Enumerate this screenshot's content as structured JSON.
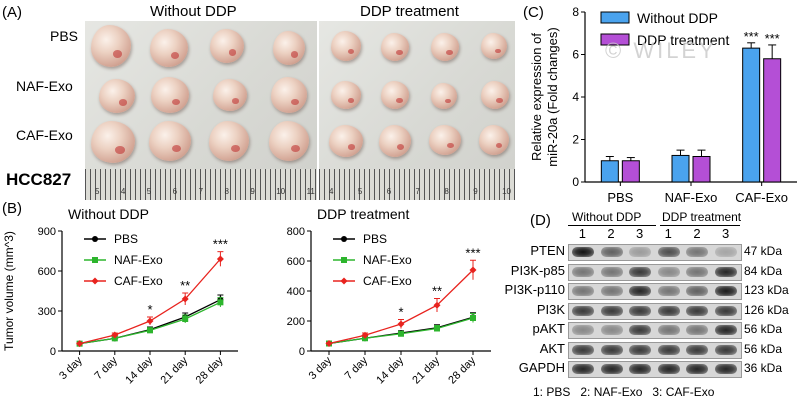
{
  "panelA": {
    "letter": "(A)",
    "left_title": "Without DDP",
    "right_title": "DDP treatment",
    "row_labels": [
      "PBS",
      "NAF-Exo",
      "CAF-Exo"
    ],
    "cell_line": "HCC827",
    "ruler_left": [
      "5",
      "4",
      "5",
      "6",
      "7",
      "8",
      "9",
      "10",
      "11"
    ],
    "ruler_right": [
      "4",
      "5",
      "6",
      "7",
      "8",
      "9",
      "10"
    ]
  },
  "panelB": {
    "letter": "(B)",
    "ylabel": "Tumor volume (mm^3)",
    "legend": [
      "PBS",
      "NAF-Exo",
      "CAF-Exo"
    ],
    "colors": [
      "#000000",
      "#2db52d",
      "#e8231e"
    ],
    "categories": [
      "3 day",
      "7 day",
      "14 day",
      "21 day",
      "28 day"
    ]
  },
  "panelC": {
    "letter": "(C)",
    "ylabel_line1": "Relative expression of",
    "ylabel_line2": "miR-20a (Fold changes)",
    "legend": [
      "Without DDP",
      "DDP treatment"
    ],
    "colors": [
      "#4aa3ee",
      "#b44fd6"
    ],
    "watermark": "© WILEY"
  },
  "panelD": {
    "letter": "(D)",
    "group1": "Without DDP",
    "group2": "DDP treatment",
    "lanes": [
      "1",
      "2",
      "3",
      "1",
      "2",
      "3"
    ],
    "proteins": [
      "PTEN",
      "PI3K-p85",
      "PI3K-p110",
      "PI3K",
      "pAKT",
      "AKT",
      "GAPDH"
    ],
    "sizes": [
      "47 kDa",
      "84 kDa",
      "123 kDa",
      "126 kDa",
      "56 kDa",
      "56 kDa",
      "36 kDa"
    ],
    "footnote": "1: PBS   2: NAF-Exo   3: CAF-Exo"
  },
  "chart_data": [
    {
      "type": "line",
      "title": "Without DDP",
      "ylabel": "Tumor volume (mm^3)",
      "categories": [
        "3 day",
        "7 day",
        "14 day",
        "21 day",
        "28 day"
      ],
      "ylim": [
        0,
        900
      ],
      "yticks": [
        0,
        300,
        600,
        900
      ],
      "series": [
        {
          "name": "PBS",
          "values": [
            55,
            95,
            160,
            255,
            385
          ],
          "errors": [
            5,
            10,
            20,
            30,
            35
          ]
        },
        {
          "name": "NAF-Exo",
          "values": [
            55,
            95,
            155,
            240,
            365
          ],
          "errors": [
            5,
            10,
            20,
            30,
            35
          ]
        },
        {
          "name": "CAF-Exo",
          "values": [
            55,
            120,
            225,
            390,
            690
          ],
          "errors": [
            5,
            15,
            30,
            45,
            55
          ]
        }
      ],
      "annotations": [
        {
          "x": "14 day",
          "text": "*"
        },
        {
          "x": "21 day",
          "text": "**"
        },
        {
          "x": "28 day",
          "text": "***"
        }
      ]
    },
    {
      "type": "line",
      "title": "DDP treatment",
      "ylabel": "",
      "categories": [
        "3 day",
        "7 day",
        "14 day",
        "21 day",
        "28 day"
      ],
      "ylim": [
        0,
        800
      ],
      "yticks": [
        0,
        200,
        400,
        600,
        800
      ],
      "series": [
        {
          "name": "PBS",
          "values": [
            50,
            85,
            120,
            155,
            225
          ],
          "errors": [
            5,
            10,
            15,
            20,
            30
          ]
        },
        {
          "name": "NAF-Exo",
          "values": [
            50,
            85,
            115,
            150,
            220
          ],
          "errors": [
            5,
            10,
            15,
            20,
            30
          ]
        },
        {
          "name": "CAF-Exo",
          "values": [
            50,
            105,
            180,
            305,
            540
          ],
          "errors": [
            5,
            15,
            30,
            45,
            65
          ]
        }
      ],
      "annotations": [
        {
          "x": "14 day",
          "text": "*"
        },
        {
          "x": "21 day",
          "text": "**"
        },
        {
          "x": "28 day",
          "text": "***"
        }
      ]
    },
    {
      "type": "bar",
      "title": "",
      "ylabel": "Relative expression of miR-20a (Fold changes)",
      "categories": [
        "PBS",
        "NAF-Exo",
        "CAF-Exo"
      ],
      "ylim": [
        0,
        8
      ],
      "yticks": [
        0,
        2,
        4,
        6,
        8
      ],
      "series": [
        {
          "name": "Without DDP",
          "values": [
            1.0,
            1.25,
            6.3
          ],
          "errors": [
            0.2,
            0.25,
            0.25
          ]
        },
        {
          "name": "DDP treatment",
          "values": [
            1.0,
            1.2,
            5.8
          ],
          "errors": [
            0.15,
            0.3,
            0.65
          ]
        }
      ],
      "annotations": [
        {
          "x": "CAF-Exo",
          "series": "Without DDP",
          "text": "***"
        },
        {
          "x": "CAF-Exo",
          "series": "DDP treatment",
          "text": "***"
        }
      ]
    }
  ]
}
